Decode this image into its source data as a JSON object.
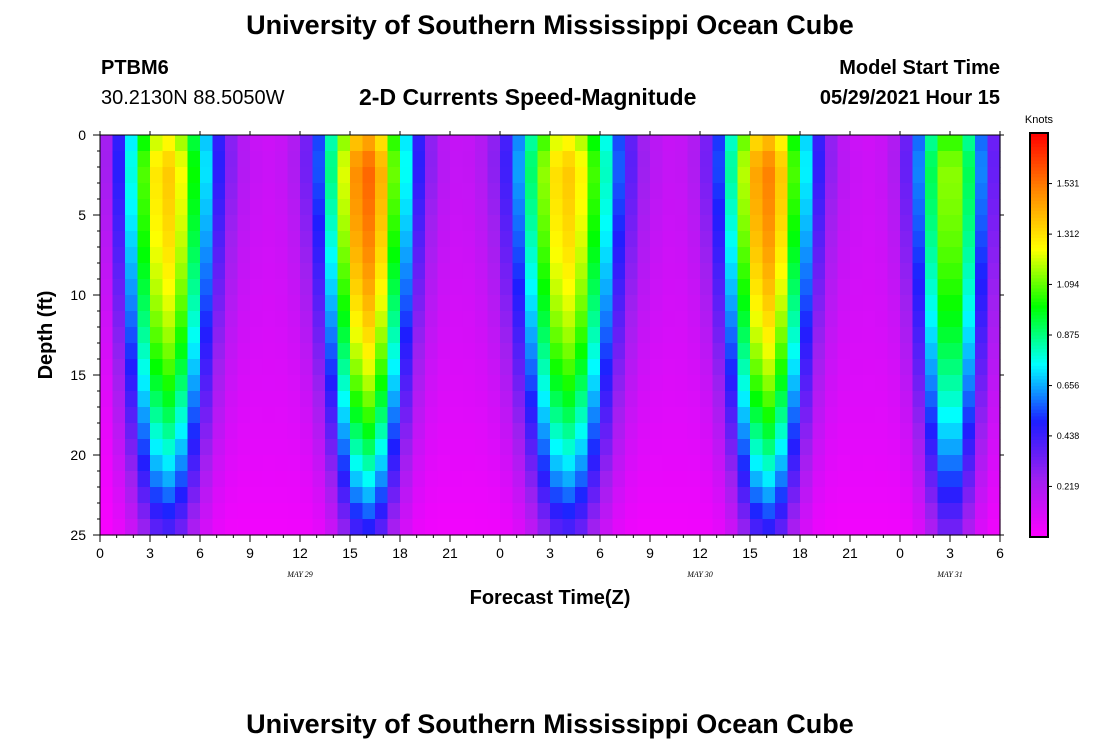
{
  "page": {
    "title_top": "University of Southern Mississippi Ocean Cube",
    "title_bottom": "University of Southern Mississippi Ocean Cube",
    "station_name": "PTBM6",
    "station_coords": "30.2130N  88.5050W",
    "subtitle": "2-D Currents Speed-Magnitude",
    "model_start_label": "Model Start Time",
    "model_start_value": "05/29/2021 Hour 15"
  },
  "chart_data": {
    "type": "heatmap",
    "title": "2-D Currents Speed-Magnitude",
    "xlabel": "Forecast Time(Z)",
    "ylabel": "Depth (ft)",
    "x_tick_labels": [
      "0",
      "3",
      "6",
      "9",
      "12",
      "15",
      "18",
      "21",
      "0",
      "3",
      "6",
      "9",
      "12",
      "15",
      "18",
      "21",
      "0",
      "3",
      "6"
    ],
    "x_range_hours": [
      0,
      54
    ],
    "date_labels": [
      {
        "label": "MAY 29",
        "hour": 12
      },
      {
        "label": "MAY 30",
        "hour": 36
      },
      {
        "label": "MAY 31",
        "hour": 51
      }
    ],
    "y_tick_labels": [
      "0",
      "5",
      "10",
      "15",
      "20",
      "25"
    ],
    "ylim": [
      0,
      25
    ],
    "y_reversed": true,
    "colorbar": {
      "unit": "Knots",
      "ticks": [
        "1.531",
        "1.312",
        "1.094",
        "0.875",
        "0.656",
        "0.438",
        "0.219"
      ],
      "range": [
        0,
        1.75
      ],
      "colors": [
        "#ff00ff",
        "#a020f0",
        "#1e1eff",
        "#00ffff",
        "#00ff00",
        "#ffff00",
        "#ff8800",
        "#ff0000"
      ]
    },
    "speed_peaks": [
      {
        "hour": -1,
        "speed": -0.15,
        "width": 1.6
      },
      {
        "hour": 4,
        "speed": 1.25,
        "width": 1.8
      },
      {
        "hour": 16,
        "speed": 1.45,
        "width": 1.7
      },
      {
        "hour": 28,
        "speed": 1.25,
        "width": 2.0
      },
      {
        "hour": 40,
        "speed": 1.4,
        "width": 1.7
      },
      {
        "hour": 51,
        "speed": 1.05,
        "width": 1.4
      }
    ],
    "near_surface_max_depth": 2.0,
    "grid_resolution": {
      "dx_hours": 0.75,
      "dy_ft": 1
    }
  }
}
